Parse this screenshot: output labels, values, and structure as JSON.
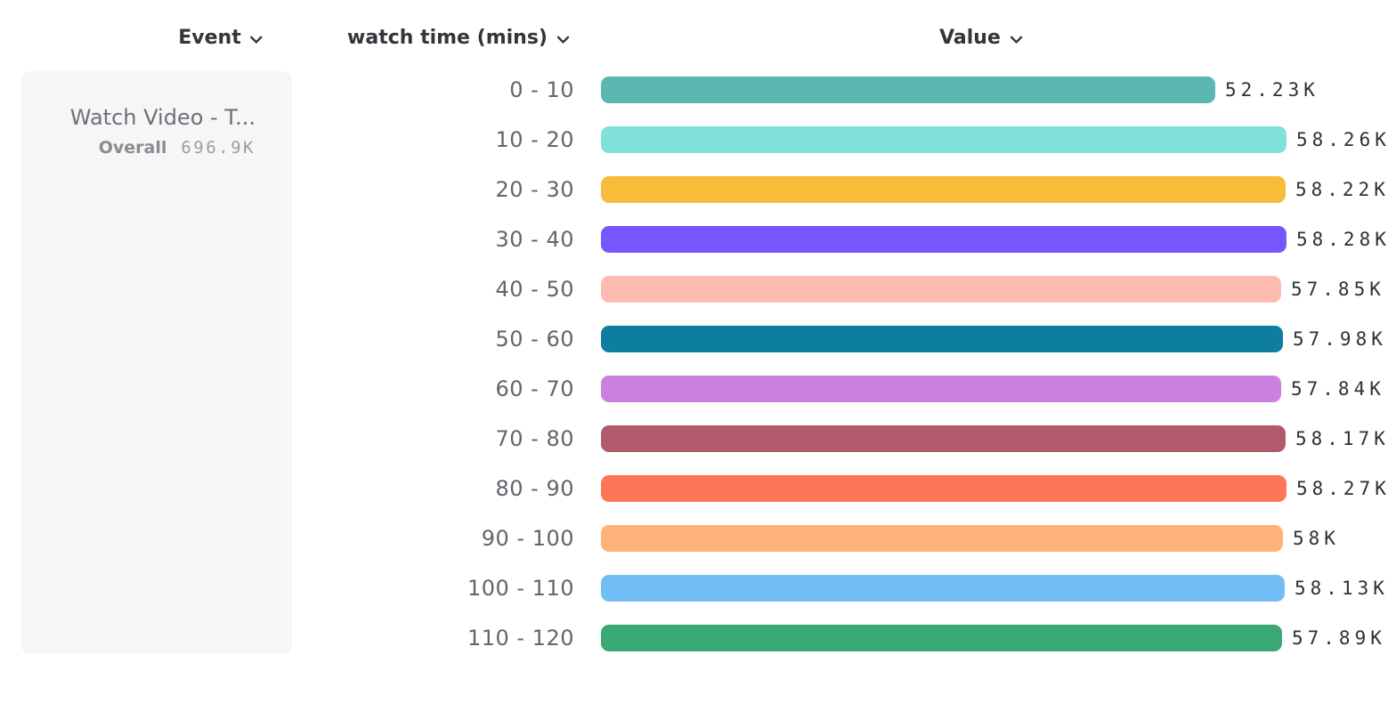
{
  "header": {
    "columns": [
      {
        "label": "Event",
        "icon": "chevron-down"
      },
      {
        "label": "watch time (mins)",
        "icon": "chevron-down"
      },
      {
        "label": "Value",
        "icon": "chevron-down"
      }
    ]
  },
  "event_card": {
    "title": "Watch Video - T...",
    "overall_label": "Overall",
    "overall_value": "696.9K"
  },
  "chart_data": {
    "type": "bar",
    "orientation": "horizontal",
    "title": "",
    "xlabel": "Value",
    "ylabel": "watch time (mins)",
    "value_axis_range": [
      0,
      58280
    ],
    "grid": false,
    "legend": false,
    "categories": [
      "0 - 10",
      "10 - 20",
      "20 - 30",
      "30 - 40",
      "40 - 50",
      "50 - 60",
      "60 - 70",
      "70 - 80",
      "80 - 90",
      "90 - 100",
      "100 - 110",
      "110 - 120"
    ],
    "values": [
      52230,
      58260,
      58220,
      58280,
      57850,
      57980,
      57840,
      58170,
      58270,
      58000,
      58130,
      57890
    ],
    "value_labels": [
      "52.23K",
      "58.26K",
      "58.22K",
      "58.28K",
      "57.85K",
      "57.98K",
      "57.84K",
      "58.17K",
      "58.27K",
      "58K",
      "58.13K",
      "57.89K"
    ],
    "bar_colors": [
      "#5BB7AF",
      "#80E1D9",
      "#F8BC3B",
      "#7856FF",
      "#FEBBB2",
      "#0D7EA0",
      "#CA80DC",
      "#B2596E",
      "#FF7557",
      "#FFB27A",
      "#72BEF4",
      "#3BA974"
    ]
  }
}
